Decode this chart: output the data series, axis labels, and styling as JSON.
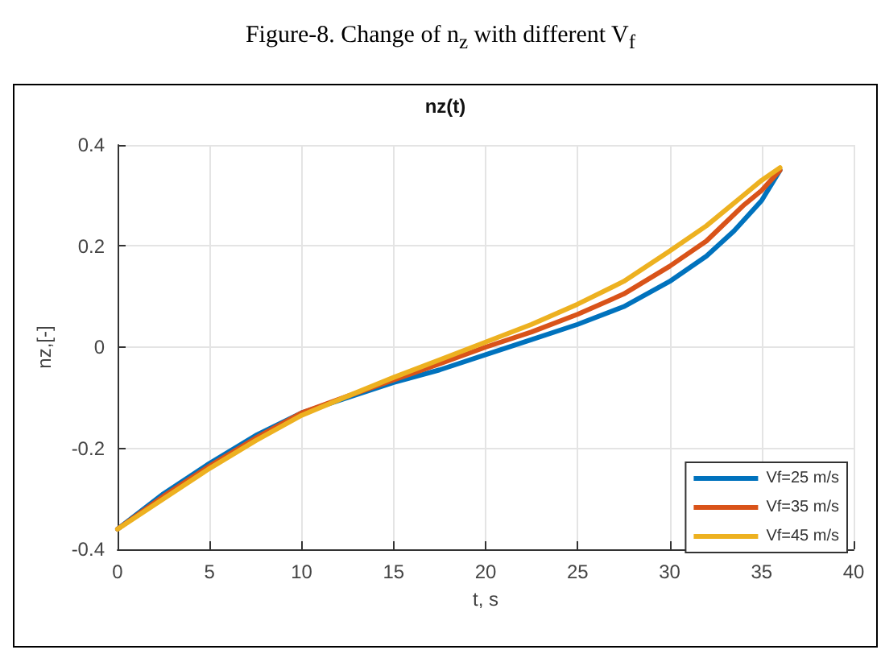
{
  "chart_data": {
    "type": "line",
    "title": "Figure-8. Change of n$_{z}$ with different V$_{f}$",
    "subtitle": "nz(t)",
    "xlabel": "t, s",
    "ylabel": "nz,[-]",
    "xlim": [
      0,
      40
    ],
    "xticks": [
      0,
      5,
      10,
      15,
      20,
      25,
      30,
      35,
      40
    ],
    "ylim": [
      -0.4,
      0.4
    ],
    "yticks": [
      -0.4,
      -0.2,
      0,
      0.2,
      0.4
    ],
    "grid": true,
    "legend": "bottom right",
    "marker": "none",
    "line_style": "solid",
    "series": [
      {
        "name": "Vf=25 m/s",
        "color": "#0072bd",
        "x": [
          0,
          2.5,
          5,
          7.5,
          10,
          12.5,
          15,
          17.5,
          20,
          22.5,
          25,
          27.5,
          30,
          32,
          33.5,
          35,
          36
        ],
        "values": [
          -0.36,
          -0.29,
          -0.23,
          -0.175,
          -0.13,
          -0.1,
          -0.07,
          -0.045,
          -0.015,
          0.015,
          0.045,
          0.08,
          0.13,
          0.18,
          0.23,
          0.29,
          0.35
        ]
      },
      {
        "name": "Vf=35 m/s",
        "color": "#d95319",
        "x": [
          0,
          2.5,
          5,
          7.5,
          10,
          12.5,
          15,
          17.5,
          20,
          22.5,
          25,
          27.5,
          30,
          32,
          34,
          35,
          36
        ],
        "values": [
          -0.36,
          -0.295,
          -0.235,
          -0.18,
          -0.13,
          -0.097,
          -0.065,
          -0.033,
          0.0,
          0.03,
          0.065,
          0.105,
          0.16,
          0.21,
          0.28,
          0.31,
          0.35
        ]
      },
      {
        "name": "Vf=45 m/s",
        "color": "#edb120",
        "x": [
          0,
          2.5,
          5,
          7.5,
          10,
          12.5,
          15,
          17.5,
          20,
          22.5,
          25,
          27.5,
          30,
          32,
          34,
          35,
          36
        ],
        "values": [
          -0.36,
          -0.3,
          -0.24,
          -0.185,
          -0.135,
          -0.097,
          -0.06,
          -0.025,
          0.01,
          0.045,
          0.085,
          0.13,
          0.19,
          0.24,
          0.3,
          0.33,
          0.355
        ]
      }
    ]
  }
}
